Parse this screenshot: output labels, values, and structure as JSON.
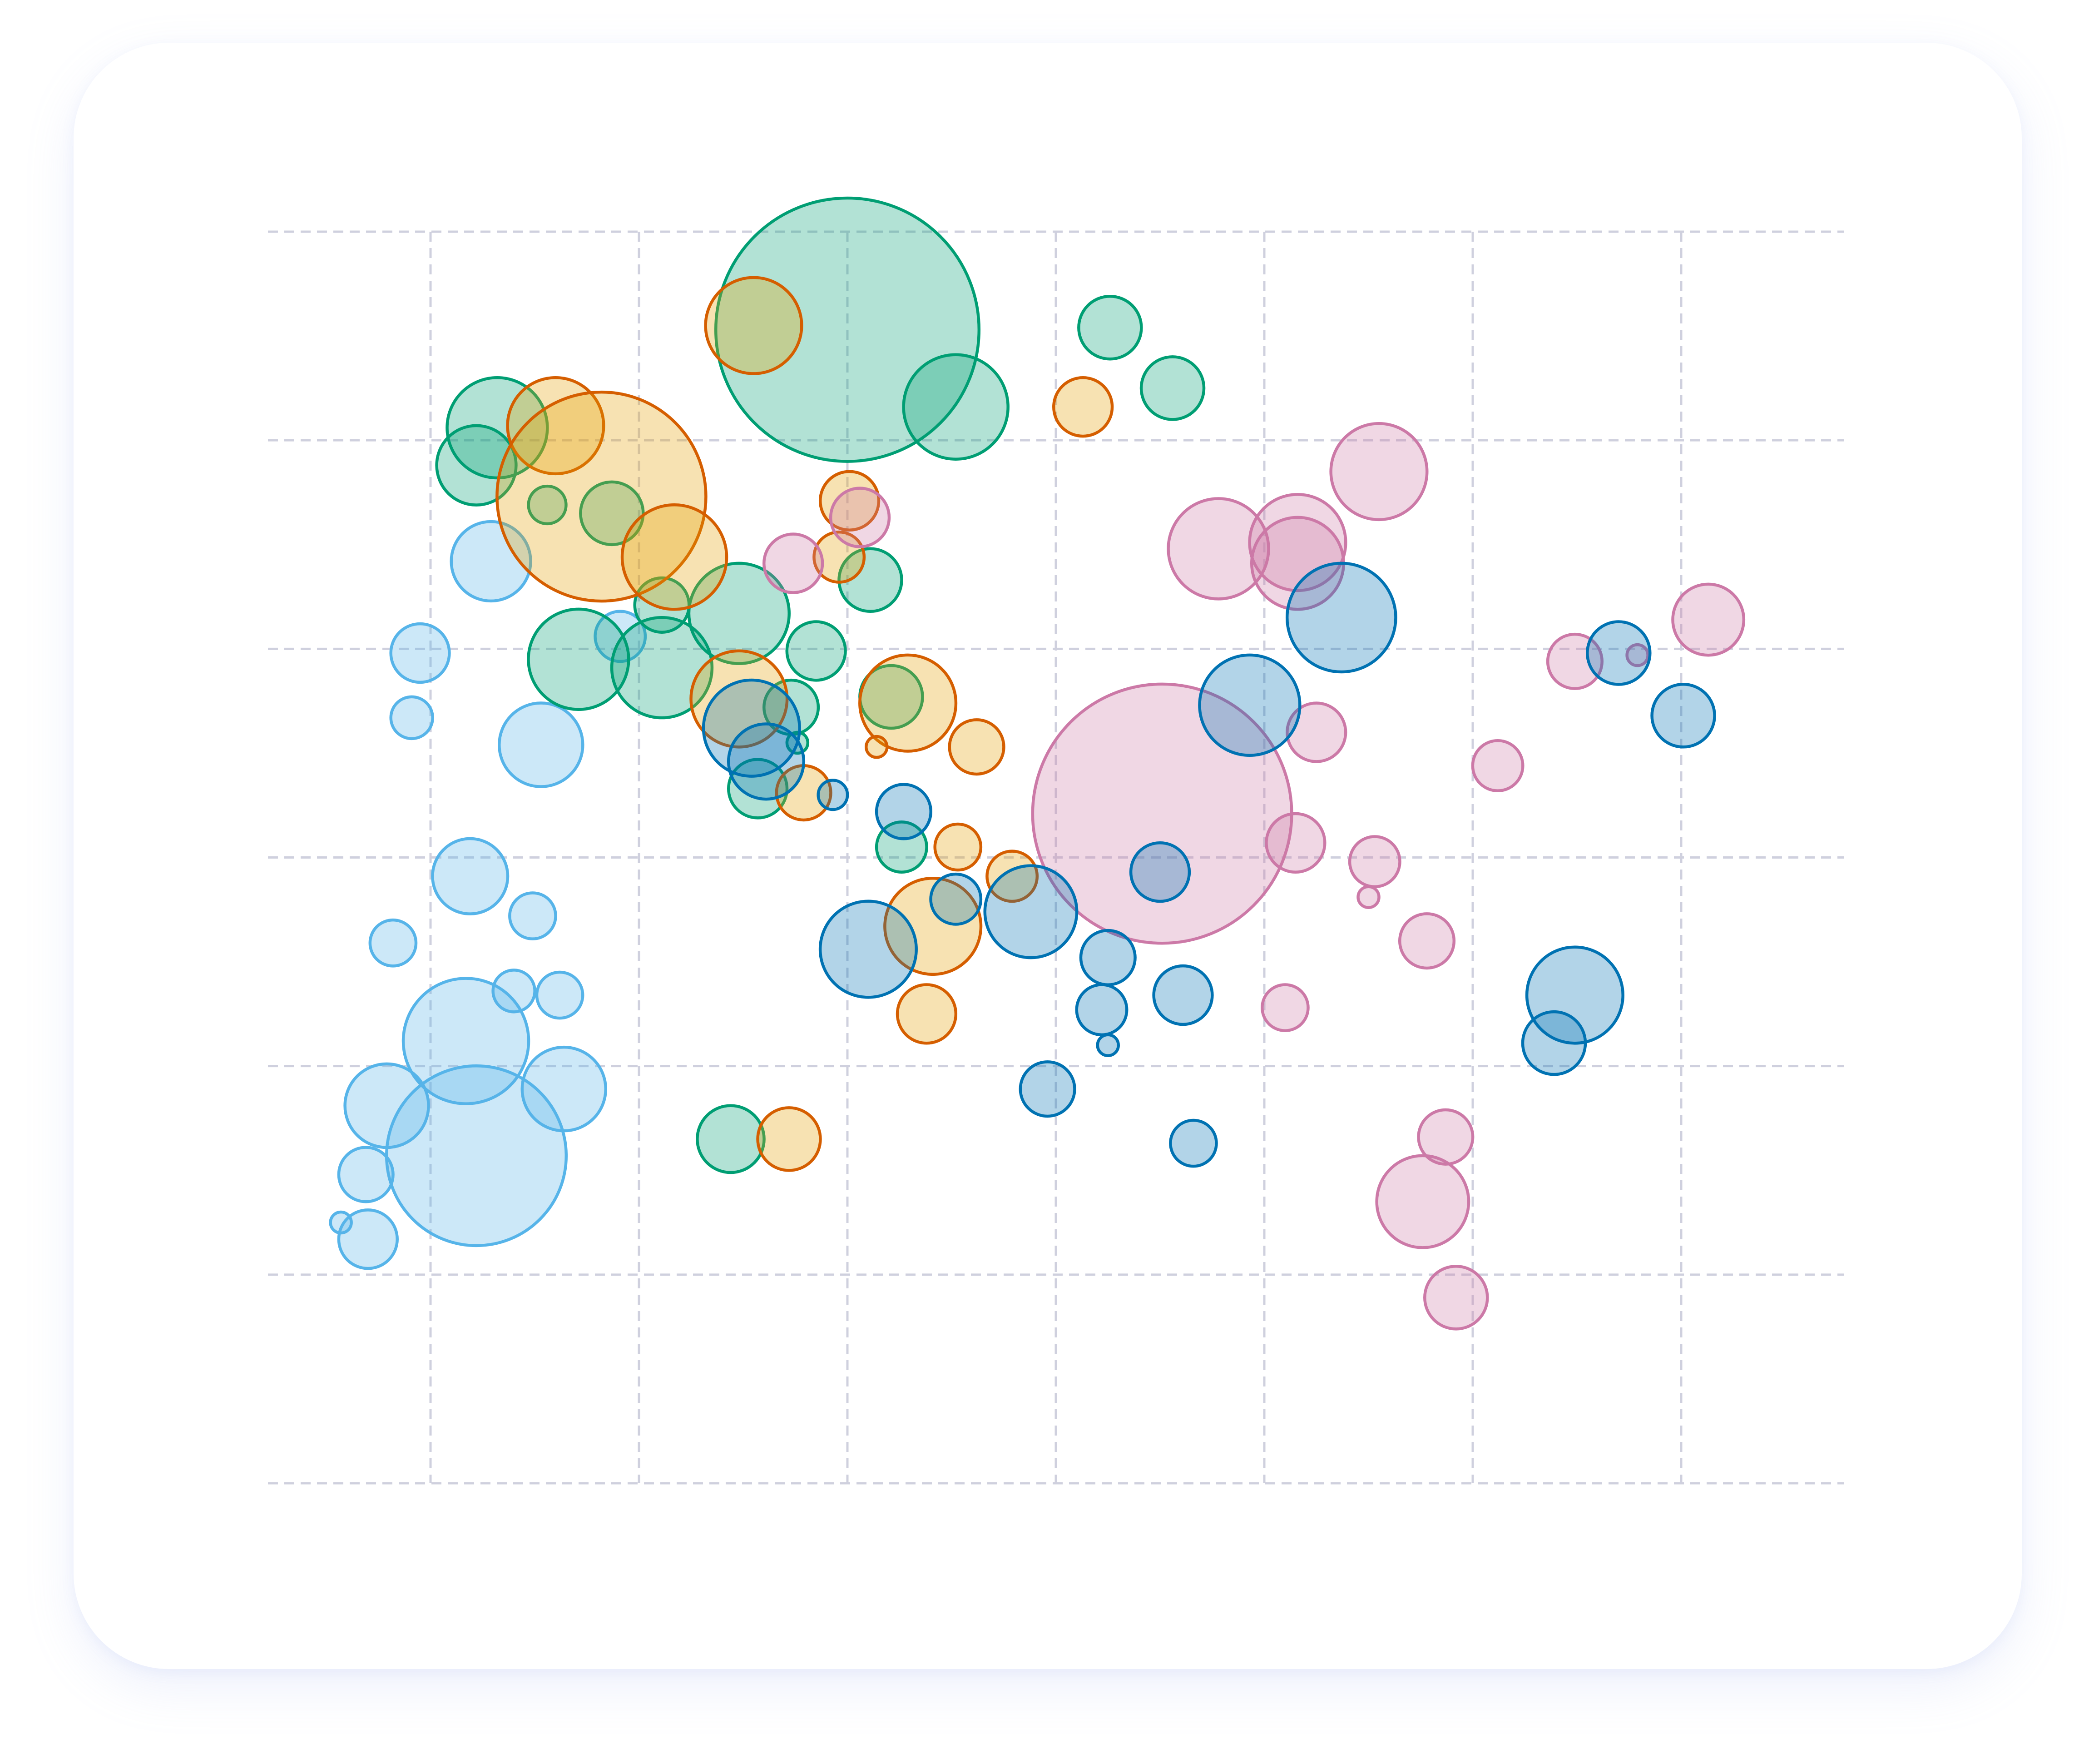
{
  "chart_data": {
    "type": "scatter",
    "subtype": "bubble",
    "title": "",
    "xlabel": "",
    "ylabel": "",
    "xlim": [
      -0.78,
      6.78
    ],
    "ylim": [
      0,
      6
    ],
    "grid": true,
    "x_gridlines": [
      0,
      1,
      2,
      3,
      4,
      5,
      6
    ],
    "y_gridlines": [
      0,
      1,
      2,
      3,
      4,
      5,
      6
    ],
    "tick_labels_visible": false,
    "legend": "none",
    "series": [
      {
        "color": "#56b4e9",
        "points": [
          {
            "x": -0.05,
            "y": 3.98,
            "size": 14
          },
          {
            "x": -0.09,
            "y": 3.67,
            "size": 10
          },
          {
            "x": 0.53,
            "y": 3.54,
            "size": 20
          },
          {
            "x": 0.29,
            "y": 4.42,
            "size": 19
          },
          {
            "x": 0.91,
            "y": 4.06,
            "size": 12
          },
          {
            "x": 0.19,
            "y": 2.91,
            "size": 18
          },
          {
            "x": 0.49,
            "y": 2.72,
            "size": 11
          },
          {
            "x": -0.18,
            "y": 2.59,
            "size": 11
          },
          {
            "x": 0.4,
            "y": 2.36,
            "size": 10
          },
          {
            "x": 0.62,
            "y": 2.34,
            "size": 11
          },
          {
            "x": 0.17,
            "y": 2.12,
            "size": 30
          },
          {
            "x": 0.64,
            "y": 1.89,
            "size": 20
          },
          {
            "x": -0.21,
            "y": 1.81,
            "size": 20
          },
          {
            "x": 0.22,
            "y": 1.57,
            "size": 43
          },
          {
            "x": -0.31,
            "y": 1.48,
            "size": 13
          },
          {
            "x": -0.43,
            "y": 1.25,
            "size": 5
          },
          {
            "x": -0.3,
            "y": 1.17,
            "size": 14
          }
        ]
      },
      {
        "color": "#009e73",
        "points": [
          {
            "x": 2.0,
            "y": 5.53,
            "size": 63
          },
          {
            "x": 2.52,
            "y": 5.16,
            "size": 25
          },
          {
            "x": 0.32,
            "y": 5.06,
            "size": 24
          },
          {
            "x": 0.22,
            "y": 4.88,
            "size": 19
          },
          {
            "x": 0.56,
            "y": 4.69,
            "size": 9
          },
          {
            "x": 0.87,
            "y": 4.65,
            "size": 15
          },
          {
            "x": 1.11,
            "y": 4.21,
            "size": 13
          },
          {
            "x": 1.48,
            "y": 4.17,
            "size": 24
          },
          {
            "x": 1.11,
            "y": 3.91,
            "size": 24
          },
          {
            "x": 0.71,
            "y": 3.95,
            "size": 24
          },
          {
            "x": 2.11,
            "y": 4.33,
            "size": 15
          },
          {
            "x": 1.85,
            "y": 3.99,
            "size": 14
          },
          {
            "x": 1.73,
            "y": 3.72,
            "size": 13
          },
          {
            "x": 2.21,
            "y": 3.77,
            "size": 15
          },
          {
            "x": 1.76,
            "y": 3.55,
            "size": 5
          },
          {
            "x": 1.57,
            "y": 3.33,
            "size": 14
          },
          {
            "x": 2.26,
            "y": 3.05,
            "size": 12
          },
          {
            "x": 1.44,
            "y": 1.65,
            "size": 16
          },
          {
            "x": 3.26,
            "y": 5.54,
            "size": 15
          },
          {
            "x": 3.56,
            "y": 5.25,
            "size": 15
          }
        ]
      },
      {
        "color": "#e69f00",
        "stroke": "#d55e00",
        "points": [
          {
            "x": 1.55,
            "y": 5.55,
            "size": 23
          },
          {
            "x": 0.6,
            "y": 5.07,
            "size": 23
          },
          {
            "x": 0.82,
            "y": 4.73,
            "size": 50
          },
          {
            "x": 1.17,
            "y": 4.44,
            "size": 25
          },
          {
            "x": 1.96,
            "y": 4.44,
            "size": 12
          },
          {
            "x": 2.01,
            "y": 4.71,
            "size": 14
          },
          {
            "x": 1.48,
            "y": 3.76,
            "size": 23
          },
          {
            "x": 2.29,
            "y": 3.74,
            "size": 23
          },
          {
            "x": 2.14,
            "y": 3.53,
            "size": 5
          },
          {
            "x": 2.62,
            "y": 3.53,
            "size": 13
          },
          {
            "x": 1.79,
            "y": 3.31,
            "size": 13
          },
          {
            "x": 2.53,
            "y": 3.05,
            "size": 11
          },
          {
            "x": 2.79,
            "y": 2.91,
            "size": 12
          },
          {
            "x": 2.41,
            "y": 2.67,
            "size": 23
          },
          {
            "x": 2.38,
            "y": 2.25,
            "size": 14
          },
          {
            "x": 3.13,
            "y": 5.16,
            "size": 14
          },
          {
            "x": 1.72,
            "y": 1.65,
            "size": 15
          }
        ]
      },
      {
        "color": "#cc79a7",
        "points": [
          {
            "x": 2.06,
            "y": 4.63,
            "size": 14
          },
          {
            "x": 1.74,
            "y": 4.41,
            "size": 14
          },
          {
            "x": 3.78,
            "y": 4.48,
            "size": 24
          },
          {
            "x": 4.16,
            "y": 4.51,
            "size": 23
          },
          {
            "x": 4.16,
            "y": 4.41,
            "size": 22
          },
          {
            "x": 4.55,
            "y": 4.85,
            "size": 23
          },
          {
            "x": 3.51,
            "y": 3.21,
            "size": 62
          },
          {
            "x": 4.25,
            "y": 3.6,
            "size": 14
          },
          {
            "x": 4.15,
            "y": 3.07,
            "size": 14
          },
          {
            "x": 4.53,
            "y": 2.98,
            "size": 12
          },
          {
            "x": 4.5,
            "y": 2.81,
            "size": 5
          },
          {
            "x": 4.78,
            "y": 2.6,
            "size": 13
          },
          {
            "x": 4.1,
            "y": 2.28,
            "size": 11
          },
          {
            "x": 5.12,
            "y": 3.44,
            "size": 12
          },
          {
            "x": 5.49,
            "y": 3.94,
            "size": 13
          },
          {
            "x": 5.79,
            "y": 3.97,
            "size": 5
          },
          {
            "x": 6.13,
            "y": 4.14,
            "size": 17
          },
          {
            "x": 4.87,
            "y": 1.66,
            "size": 13
          },
          {
            "x": 4.76,
            "y": 1.35,
            "size": 22
          },
          {
            "x": 4.92,
            "y": 0.89,
            "size": 15
          }
        ]
      },
      {
        "color": "#0072b2",
        "points": [
          {
            "x": 1.54,
            "y": 3.62,
            "size": 23
          },
          {
            "x": 1.61,
            "y": 3.46,
            "size": 18
          },
          {
            "x": 1.93,
            "y": 3.3,
            "size": 7
          },
          {
            "x": 2.27,
            "y": 3.22,
            "size": 13
          },
          {
            "x": 2.52,
            "y": 2.8,
            "size": 12
          },
          {
            "x": 2.1,
            "y": 2.56,
            "size": 23
          },
          {
            "x": 2.88,
            "y": 2.74,
            "size": 22
          },
          {
            "x": 3.5,
            "y": 2.93,
            "size": 14
          },
          {
            "x": 3.25,
            "y": 2.52,
            "size": 13
          },
          {
            "x": 3.61,
            "y": 2.34,
            "size": 14
          },
          {
            "x": 3.22,
            "y": 2.27,
            "size": 12
          },
          {
            "x": 3.25,
            "y": 2.1,
            "size": 5
          },
          {
            "x": 2.96,
            "y": 1.89,
            "size": 13
          },
          {
            "x": 3.66,
            "y": 1.63,
            "size": 11
          },
          {
            "x": 3.93,
            "y": 3.73,
            "size": 24
          },
          {
            "x": 4.37,
            "y": 4.15,
            "size": 26
          },
          {
            "x": 5.7,
            "y": 3.98,
            "size": 15
          },
          {
            "x": 6.01,
            "y": 3.68,
            "size": 15
          },
          {
            "x": 5.49,
            "y": 2.34,
            "size": 23
          },
          {
            "x": 5.39,
            "y": 2.11,
            "size": 15
          }
        ]
      }
    ]
  },
  "colors": {
    "card_background": "#ffffff",
    "grid": "#cfd0de",
    "sky_blue": "#56b4e9",
    "green": "#009e73",
    "orange_fill": "#e69f00",
    "orange_stroke": "#d55e00",
    "pink": "#cc79a7",
    "blue": "#0072b2"
  }
}
